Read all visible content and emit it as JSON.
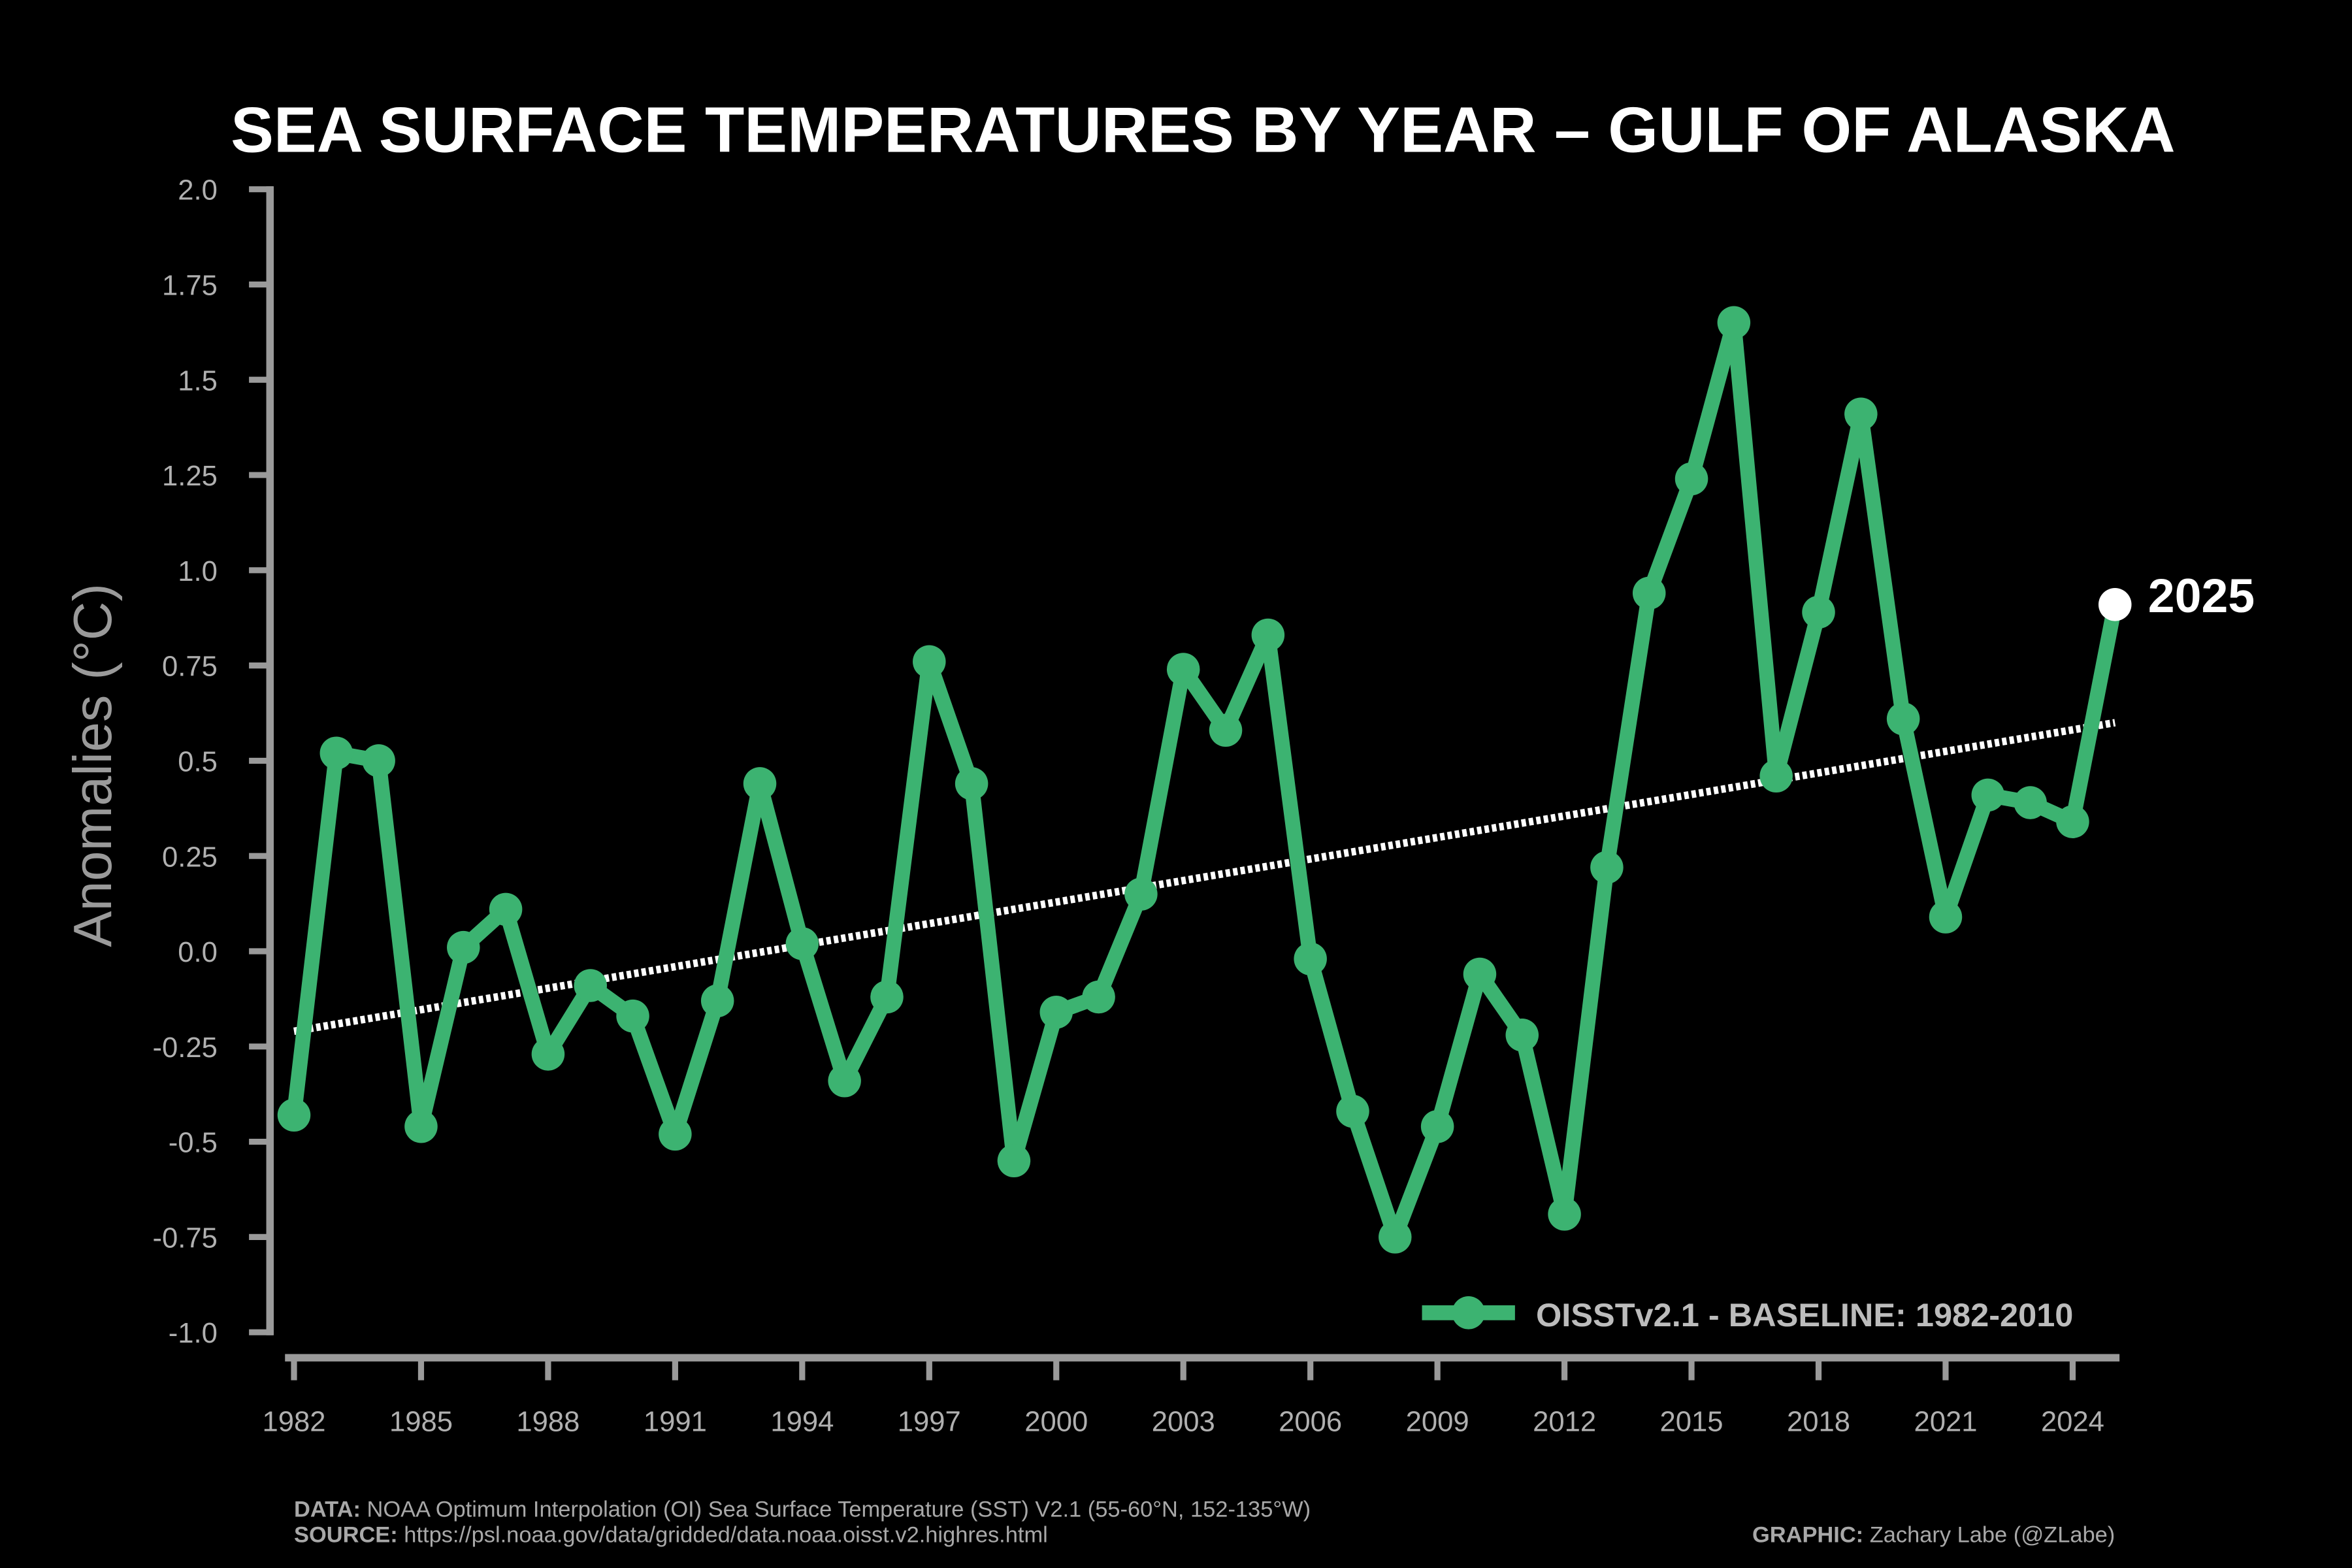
{
  "chart_data": {
    "type": "line",
    "title": "SEA SURFACE TEMPERATURES BY YEAR – GULF OF ALASKA",
    "xlabel": "",
    "ylabel": "Anomalies (°C)",
    "ylim": [
      -1.0,
      2.0
    ],
    "xlim": [
      1982,
      2025
    ],
    "yticks": [
      "-1.0",
      "-0.75",
      "-0.5",
      "-0.25",
      "0.0",
      "0.25",
      "0.5",
      "0.75",
      "1.0",
      "1.25",
      "1.5",
      "1.75",
      "2.0"
    ],
    "ytick_values": [
      -1.0,
      -0.75,
      -0.5,
      -0.25,
      0.0,
      0.25,
      0.5,
      0.75,
      1.0,
      1.25,
      1.5,
      1.75,
      2.0
    ],
    "xticks": [
      "1982",
      "1985",
      "1988",
      "1991",
      "1994",
      "1997",
      "2000",
      "2003",
      "2006",
      "2009",
      "2012",
      "2015",
      "2018",
      "2021",
      "2024"
    ],
    "grid": false,
    "legend_position": "bottom-right",
    "legend_label": "OISSTv2.1 - BASELINE: 1982-2010",
    "highlight_label": "2025",
    "colors": {
      "series": "#3cb371",
      "trend": "#ffffff",
      "highlight": "#ffffff"
    },
    "x": [
      1982,
      1983,
      1984,
      1985,
      1986,
      1987,
      1988,
      1989,
      1990,
      1991,
      1992,
      1993,
      1994,
      1995,
      1996,
      1997,
      1998,
      1999,
      2000,
      2001,
      2002,
      2003,
      2004,
      2005,
      2006,
      2007,
      2008,
      2009,
      2010,
      2011,
      2012,
      2013,
      2014,
      2015,
      2016,
      2017,
      2018,
      2019,
      2020,
      2021,
      2022,
      2023,
      2024,
      2025
    ],
    "series": [
      {
        "name": "OISSTv2.1 - BASELINE: 1982-2010",
        "values": [
          -0.43,
          0.52,
          0.5,
          -0.46,
          0.01,
          0.11,
          -0.27,
          -0.09,
          -0.17,
          -0.48,
          -0.13,
          0.44,
          0.02,
          -0.34,
          -0.12,
          0.76,
          0.44,
          -0.55,
          -0.16,
          -0.12,
          0.15,
          0.74,
          0.58,
          0.83,
          -0.02,
          -0.42,
          -0.75,
          -0.46,
          -0.06,
          -0.22,
          -0.69,
          0.22,
          0.94,
          1.24,
          1.65,
          0.46,
          0.89,
          1.41,
          0.61,
          0.09,
          0.41,
          0.39,
          0.34,
          0.91
        ]
      }
    ],
    "trend": {
      "start": [
        1982,
        -0.21
      ],
      "end": [
        2025,
        0.6
      ]
    }
  },
  "footer": {
    "data_label": "DATA:",
    "data_text": " NOAA Optimum Interpolation (OI) Sea Surface Temperature (SST) V2.1 (55-60°N, 152-135°W)",
    "source_label": "SOURCE:",
    "source_text": " https://psl.noaa.gov/data/gridded/data.noaa.oisst.v2.highres.html",
    "graphic_label": "GRAPHIC:",
    "graphic_text": " Zachary Labe (@ZLabe)"
  }
}
